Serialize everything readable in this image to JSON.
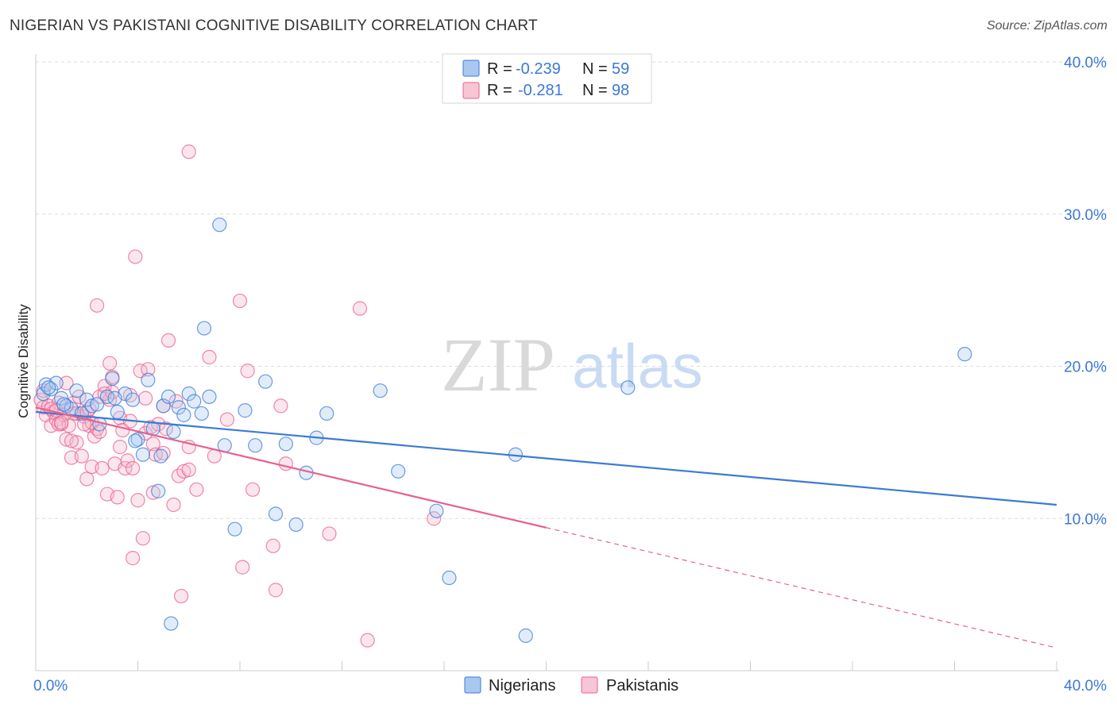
{
  "title": "NIGERIAN VS PAKISTANI COGNITIVE DISABILITY CORRELATION CHART",
  "source": "Source: ZipAtlas.com",
  "watermark": {
    "zip": "ZIP",
    "atlas": "atlas"
  },
  "colors": {
    "blue": "#3a7bd5",
    "blue_fill": "#a9c8f0",
    "pink": "#e8608d",
    "pink_fill": "#f5b8cc",
    "grid": "#dcdcdc",
    "axis_label": "#3b78d8"
  },
  "legend": {
    "rows": [
      {
        "r_label": "R =",
        "r_value": "-0.239",
        "n_label": "N =",
        "n_value": "59"
      },
      {
        "r_label": "R =",
        "r_value": "-0.281",
        "n_label": "N =",
        "n_value": "98"
      }
    ]
  },
  "bottom_legend": [
    "Nigerians",
    "Pakistanis"
  ],
  "chart_data": {
    "type": "scatter",
    "ylabel": "Cognitive Disability",
    "xlim": [
      0,
      40
    ],
    "ylim": [
      0,
      40
    ],
    "x_tick_labels": [
      "0.0%",
      "40.0%"
    ],
    "y_ticks": [
      10,
      20,
      30,
      40
    ],
    "y_tick_labels": [
      "10.0%",
      "20.0%",
      "30.0%",
      "40.0%"
    ],
    "grid": true,
    "legend_position": "top-center",
    "series": [
      {
        "name": "Nigerians",
        "points": [
          [
            0.3,
            18.2
          ],
          [
            0.4,
            18.8
          ],
          [
            0.6,
            18.5
          ],
          [
            0.8,
            18.9
          ],
          [
            1.0,
            17.9
          ],
          [
            1.2,
            17.4
          ],
          [
            1.4,
            17.2
          ],
          [
            1.6,
            18.4
          ],
          [
            1.8,
            16.9
          ],
          [
            2.0,
            17.8
          ],
          [
            2.2,
            17.4
          ],
          [
            2.5,
            16.2
          ],
          [
            2.8,
            18.0
          ],
          [
            3.0,
            19.2
          ],
          [
            3.2,
            17.0
          ],
          [
            3.5,
            18.2
          ],
          [
            3.8,
            17.8
          ],
          [
            4.0,
            15.2
          ],
          [
            4.2,
            14.2
          ],
          [
            4.4,
            19.1
          ],
          [
            4.6,
            15.9
          ],
          [
            4.8,
            11.8
          ],
          [
            5.0,
            17.4
          ],
          [
            5.2,
            18.0
          ],
          [
            5.4,
            15.7
          ],
          [
            5.6,
            17.3
          ],
          [
            5.8,
            16.8
          ],
          [
            6.0,
            18.2
          ],
          [
            6.2,
            17.7
          ],
          [
            6.5,
            16.9
          ],
          [
            6.8,
            18.0
          ],
          [
            7.2,
            29.3
          ],
          [
            7.4,
            14.8
          ],
          [
            7.8,
            9.3
          ],
          [
            8.2,
            17.1
          ],
          [
            8.6,
            14.8
          ],
          [
            9.0,
            19.0
          ],
          [
            9.4,
            10.3
          ],
          [
            9.8,
            14.9
          ],
          [
            10.2,
            9.6
          ],
          [
            10.6,
            13.0
          ],
          [
            11.0,
            15.3
          ],
          [
            11.4,
            16.9
          ],
          [
            13.5,
            18.4
          ],
          [
            14.2,
            13.1
          ],
          [
            15.7,
            10.5
          ],
          [
            16.2,
            6.1
          ],
          [
            18.8,
            14.2
          ],
          [
            19.2,
            2.3
          ],
          [
            23.2,
            18.6
          ],
          [
            36.4,
            20.8
          ],
          [
            0.5,
            18.6
          ],
          [
            1.1,
            17.5
          ],
          [
            2.4,
            17.5
          ],
          [
            3.1,
            17.9
          ],
          [
            4.9,
            14.1
          ],
          [
            5.3,
            3.1
          ],
          [
            6.6,
            22.5
          ],
          [
            3.9,
            15.1
          ]
        ]
      },
      {
        "name": "Pakistanis",
        "points": [
          [
            0.2,
            17.8
          ],
          [
            0.3,
            17.3
          ],
          [
            0.4,
            16.8
          ],
          [
            0.5,
            17.4
          ],
          [
            0.6,
            16.1
          ],
          [
            0.7,
            17.0
          ],
          [
            0.8,
            16.5
          ],
          [
            0.9,
            17.6
          ],
          [
            1.0,
            16.2
          ],
          [
            1.1,
            16.8
          ],
          [
            1.2,
            15.2
          ],
          [
            1.3,
            16.1
          ],
          [
            1.4,
            14.0
          ],
          [
            1.5,
            17.6
          ],
          [
            1.6,
            15.0
          ],
          [
            1.7,
            18.0
          ],
          [
            1.8,
            14.1
          ],
          [
            1.9,
            16.7
          ],
          [
            2.0,
            12.6
          ],
          [
            2.1,
            16.1
          ],
          [
            2.2,
            13.4
          ],
          [
            2.3,
            15.4
          ],
          [
            2.4,
            15.9
          ],
          [
            2.5,
            18.0
          ],
          [
            2.6,
            13.3
          ],
          [
            2.7,
            18.7
          ],
          [
            2.8,
            11.6
          ],
          [
            2.9,
            17.8
          ],
          [
            3.0,
            18.3
          ],
          [
            3.1,
            13.6
          ],
          [
            3.2,
            11.4
          ],
          [
            3.3,
            16.6
          ],
          [
            3.4,
            15.8
          ],
          [
            3.5,
            13.3
          ],
          [
            3.6,
            13.8
          ],
          [
            3.7,
            18.1
          ],
          [
            3.8,
            7.4
          ],
          [
            3.9,
            27.2
          ],
          [
            4.0,
            11.2
          ],
          [
            4.1,
            19.7
          ],
          [
            4.2,
            8.7
          ],
          [
            4.3,
            15.6
          ],
          [
            4.4,
            19.8
          ],
          [
            4.5,
            16.0
          ],
          [
            4.6,
            14.9
          ],
          [
            4.7,
            14.2
          ],
          [
            4.8,
            16.2
          ],
          [
            5.0,
            17.4
          ],
          [
            5.1,
            15.9
          ],
          [
            5.2,
            21.7
          ],
          [
            5.4,
            10.9
          ],
          [
            5.5,
            17.7
          ],
          [
            5.6,
            12.8
          ],
          [
            5.7,
            4.9
          ],
          [
            5.8,
            13.1
          ],
          [
            6.0,
            14.7
          ],
          [
            6.3,
            11.9
          ],
          [
            6.8,
            20.6
          ],
          [
            7.0,
            14.1
          ],
          [
            7.5,
            16.5
          ],
          [
            8.0,
            24.3
          ],
          [
            8.1,
            6.8
          ],
          [
            8.3,
            19.7
          ],
          [
            8.5,
            11.9
          ],
          [
            9.3,
            8.2
          ],
          [
            9.4,
            5.3
          ],
          [
            9.6,
            17.4
          ],
          [
            9.8,
            13.6
          ],
          [
            11.5,
            9.0
          ],
          [
            12.7,
            23.8
          ],
          [
            13.0,
            2.0
          ],
          [
            15.6,
            10.0
          ],
          [
            2.4,
            24.0
          ],
          [
            6.0,
            34.1
          ],
          [
            2.9,
            20.2
          ],
          [
            3.7,
            16.4
          ],
          [
            0.9,
            16.2
          ],
          [
            1.6,
            16.9
          ],
          [
            1.2,
            18.9
          ],
          [
            2.2,
            16.3
          ],
          [
            0.6,
            17.2
          ],
          [
            1.9,
            16.2
          ],
          [
            4.3,
            17.9
          ],
          [
            2.0,
            17.0
          ],
          [
            1.0,
            16.3
          ],
          [
            3.8,
            13.3
          ],
          [
            6.0,
            13.2
          ],
          [
            4.6,
            11.7
          ],
          [
            1.5,
            16.9
          ],
          [
            2.1,
            17.2
          ],
          [
            3.0,
            19.3
          ],
          [
            0.3,
            18.4
          ],
          [
            0.8,
            17.1
          ],
          [
            5.0,
            14.3
          ],
          [
            2.5,
            15.7
          ],
          [
            1.4,
            15.1
          ],
          [
            3.3,
            14.7
          ],
          [
            2.7,
            18.2
          ]
        ]
      }
    ],
    "trend_lines": [
      {
        "name": "Nigerians",
        "x": [
          0,
          40
        ],
        "y": [
          17.0,
          10.9
        ]
      },
      {
        "name": "Pakistanis",
        "x": [
          0,
          20
        ],
        "y": [
          17.3,
          9.4
        ],
        "dashed_x": [
          20,
          40
        ],
        "dashed_y": [
          9.4,
          1.5
        ]
      }
    ]
  }
}
